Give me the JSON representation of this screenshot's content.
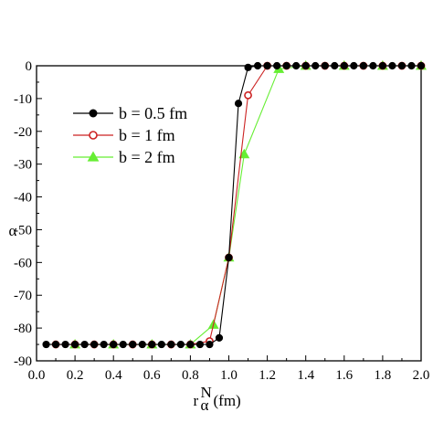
{
  "chart_data": {
    "type": "line",
    "title": "",
    "xlabel": {
      "base": "r",
      "sub": "α",
      "sup": "N",
      "unit": "(fm)"
    },
    "ylabel": "",
    "ylabel_visible_fragment": "α",
    "xlim": [
      0.0,
      2.0
    ],
    "ylim": [
      -90,
      0
    ],
    "xticks": [
      "0.0",
      "0.2",
      "0.4",
      "0.6",
      "0.8",
      "1.0",
      "1.2",
      "1.4",
      "1.6",
      "1.8",
      "2.0"
    ],
    "yticks": [
      "0",
      "-10",
      "-20",
      "-30",
      "-40",
      "-50",
      "-60",
      "-70",
      "-80",
      "-90"
    ],
    "grid": false,
    "legend_position": "upper-left",
    "series": [
      {
        "name": "b = 0.5 fm",
        "color": "#000000",
        "marker": "filled-circle",
        "x": [
          0.05,
          0.1,
          0.15,
          0.2,
          0.25,
          0.3,
          0.35,
          0.4,
          0.45,
          0.5,
          0.55,
          0.6,
          0.65,
          0.7,
          0.75,
          0.8,
          0.85,
          0.9,
          0.95,
          1.0,
          1.05,
          1.1,
          1.15,
          1.2,
          1.25,
          1.3,
          1.35,
          1.4,
          1.45,
          1.5,
          1.55,
          1.6,
          1.65,
          1.7,
          1.75,
          1.8,
          1.85,
          1.9,
          1.95,
          2.0
        ],
        "y": [
          -85,
          -85,
          -85,
          -85,
          -85,
          -85,
          -85,
          -85,
          -85,
          -85,
          -85,
          -85,
          -85,
          -85,
          -85,
          -85,
          -85,
          -85,
          -83,
          -58.5,
          -11.5,
          -0.5,
          0,
          0,
          0,
          0,
          0,
          0,
          0,
          0,
          0,
          0,
          0,
          0,
          0,
          0,
          0,
          0,
          0,
          0
        ]
      },
      {
        "name": "b = 1 fm",
        "color": "#cc2222",
        "marker": "open-circle",
        "x": [
          0.1,
          0.2,
          0.3,
          0.4,
          0.5,
          0.6,
          0.7,
          0.8,
          0.9,
          1.0,
          1.1,
          1.2,
          1.3,
          1.4,
          1.5,
          1.6,
          1.7,
          1.8,
          1.9,
          2.0
        ],
        "y": [
          -85,
          -85,
          -85,
          -85,
          -85,
          -85,
          -85,
          -85,
          -84,
          -58.5,
          -9,
          0,
          0,
          0,
          0,
          0,
          0,
          0,
          0,
          0
        ]
      },
      {
        "name": "b = 2 fm",
        "color": "#66ee33",
        "marker": "filled-triangle",
        "x": [
          0.2,
          0.4,
          0.6,
          0.8,
          0.92,
          1.0,
          1.08,
          1.26,
          1.4,
          1.6,
          1.8,
          2.0
        ],
        "y": [
          -85,
          -85,
          -85,
          -85,
          -79,
          -58.5,
          -27,
          -1,
          0,
          0,
          0,
          0
        ]
      }
    ]
  }
}
